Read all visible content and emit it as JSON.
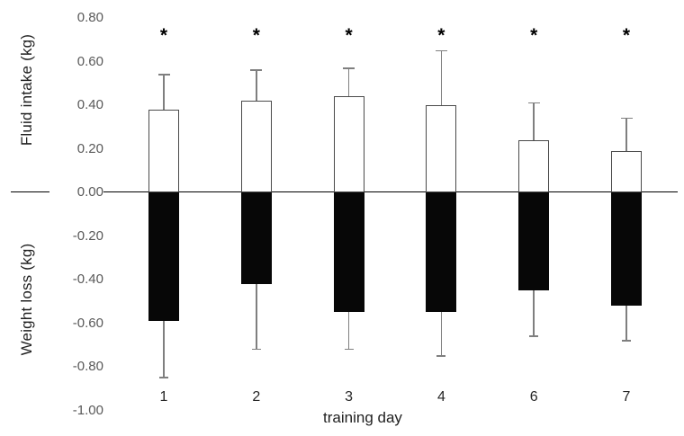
{
  "chart_data": {
    "type": "bar",
    "subtype": "diverging-bars-with-error-bars",
    "title": "",
    "xlabel": "training day",
    "ylabel_top": "Fluid intake (kg)",
    "ylabel_bottom": "Weight loss (kg)",
    "categories": [
      "1",
      "2",
      "3",
      "4",
      "6",
      "7"
    ],
    "series": [
      {
        "name": "fluid intake",
        "direction": "positive",
        "bar_fill": "#ffffff",
        "bar_border": "#4a4a4a",
        "values": [
          0.38,
          0.42,
          0.44,
          0.4,
          0.24,
          0.19
        ],
        "error_up": [
          0.16,
          0.14,
          0.13,
          0.25,
          0.17,
          0.15
        ],
        "whisker_tops": [
          0.54,
          0.56,
          0.57,
          0.65,
          0.41,
          0.34
        ]
      },
      {
        "name": "weight loss",
        "direction": "negative",
        "bar_fill": "#070707",
        "bar_border": "#070707",
        "values": [
          -0.59,
          -0.42,
          -0.55,
          -0.55,
          -0.45,
          -0.52
        ],
        "error_down": [
          0.26,
          0.3,
          0.17,
          0.2,
          0.21,
          0.16
        ],
        "whisker_bottoms": [
          -0.85,
          -0.72,
          -0.72,
          -0.75,
          -0.66,
          -0.68
        ]
      }
    ],
    "significance_marker": "*",
    "significance": [
      true,
      true,
      true,
      true,
      true,
      true
    ],
    "ylim": [
      -1.0,
      0.8
    ],
    "ytick_step": 0.2,
    "yticks": [
      "0.80",
      "0.60",
      "0.40",
      "0.20",
      "0.00",
      "-0.20",
      "-0.40",
      "-0.60",
      "-0.80",
      "-1.00"
    ],
    "grid": false,
    "legend": false,
    "error_bar_color": "#7f7f7f",
    "tick_label_color": "#595959",
    "axis_line_color": "#000000"
  }
}
